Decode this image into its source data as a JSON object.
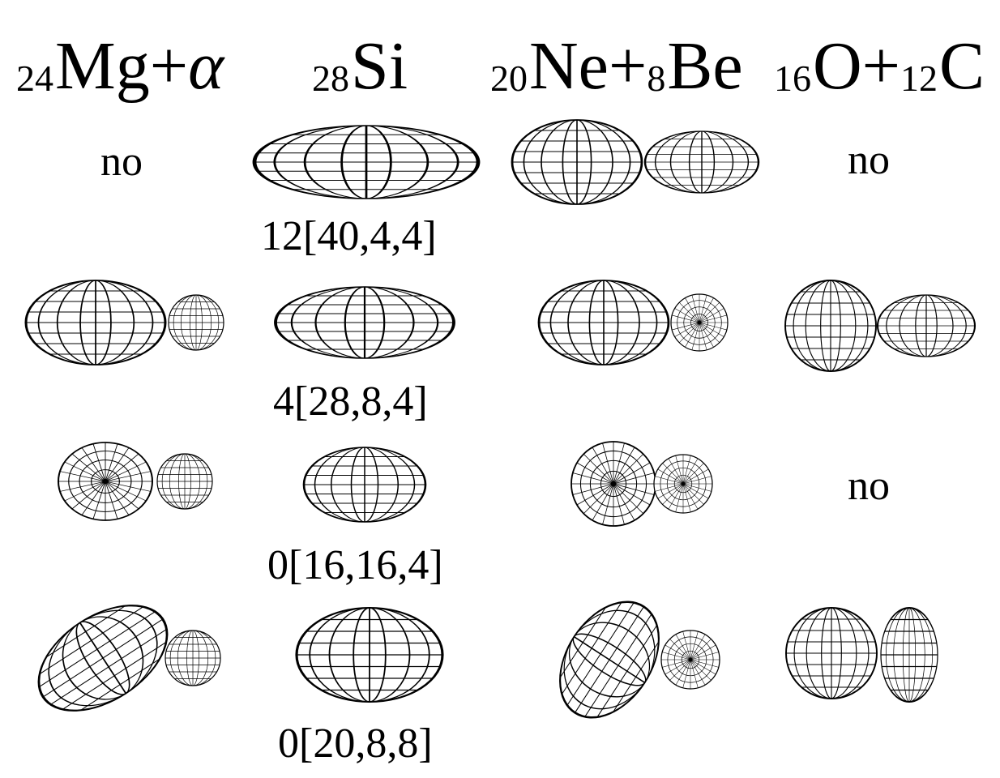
{
  "headers": {
    "mg_alpha": {
      "mass": "24",
      "symbol": "Mg+",
      "extra": "α"
    },
    "si": {
      "mass": "28",
      "symbol": "Si"
    },
    "ne_be": {
      "mass1": "20",
      "sym1": "Ne+",
      "mass2": "8",
      "sym2": "Be"
    },
    "o_c": {
      "mass1": "16",
      "sym1": "O+",
      "mass2": "12",
      "sym2": "C"
    }
  },
  "no_labels": {
    "row1_mg": "no",
    "row1_oc": "no",
    "row3_oc": "no"
  },
  "config_labels": {
    "row1": "12[40,4,4]",
    "row2": "4[28,8,4]",
    "row3": "0[16,16,4]",
    "row4": "0[20,8,8]"
  }
}
